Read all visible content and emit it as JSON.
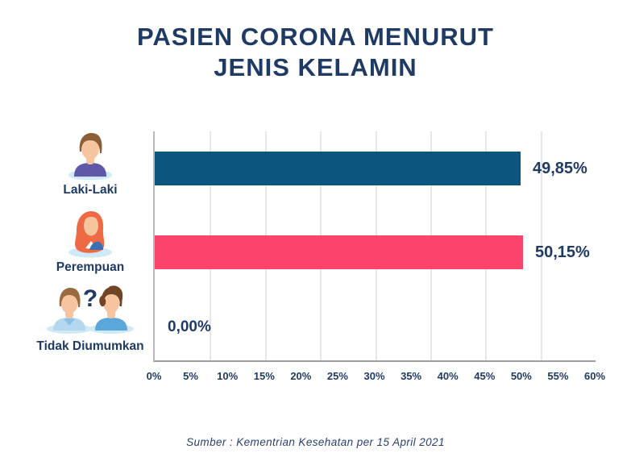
{
  "title": {
    "line1": "PASIEN CORONA MENURUT",
    "line2": "JENIS KELAMIN"
  },
  "footer": {
    "source": "Sumber : Kementrian Kesehatan per 15 April 2021"
  },
  "chart_data": {
    "type": "bar",
    "orientation": "horizontal",
    "title": "PASIEN CORONA MENURUT JENIS KELAMIN",
    "categories": [
      "Laki-Laki",
      "Perempuan",
      "Tidak Diumumkan"
    ],
    "values": [
      49.85,
      50.15,
      0.0
    ],
    "value_labels": [
      "49,85%",
      "50,15%",
      "0,00%"
    ],
    "bar_colors": [
      "#0b557f",
      "#fc436b",
      null
    ],
    "xlabel": "",
    "ylabel": "",
    "xlim": [
      0,
      60
    ],
    "x_ticks": [
      "0%",
      "5%",
      "10%",
      "15%",
      "20%",
      "25%",
      "30%",
      "35%",
      "40%",
      "45%",
      "50%",
      "55%",
      "60%"
    ],
    "grid": "vertical-light",
    "legend": "none",
    "source": "Sumber : Kementrian Kesehatan per 15 April 2021"
  },
  "icons": {
    "male": "male-person-icon",
    "female": "female-person-icon",
    "unknown": "unknown-gender-pair-icon"
  },
  "colors": {
    "navy_text": "#1f3a63",
    "bar_blue": "#0b557f",
    "bar_pink": "#fc436b",
    "gridline": "#e6e6e6",
    "axis": "#9f9f9f",
    "icon_base": "#cfe9f7",
    "skin": "#f6c49e",
    "male_hair": "#8c5e38",
    "male_shirt": "#5f57a7",
    "female_hair": "#ee6a45",
    "female_jacket": "#3a6fb3",
    "pair_left_shirt": "#b5d8f0",
    "pair_left_hair": "#9a6b40",
    "pair_right_shirt": "#5ba7dc",
    "pair_right_hair": "#6f4526"
  }
}
